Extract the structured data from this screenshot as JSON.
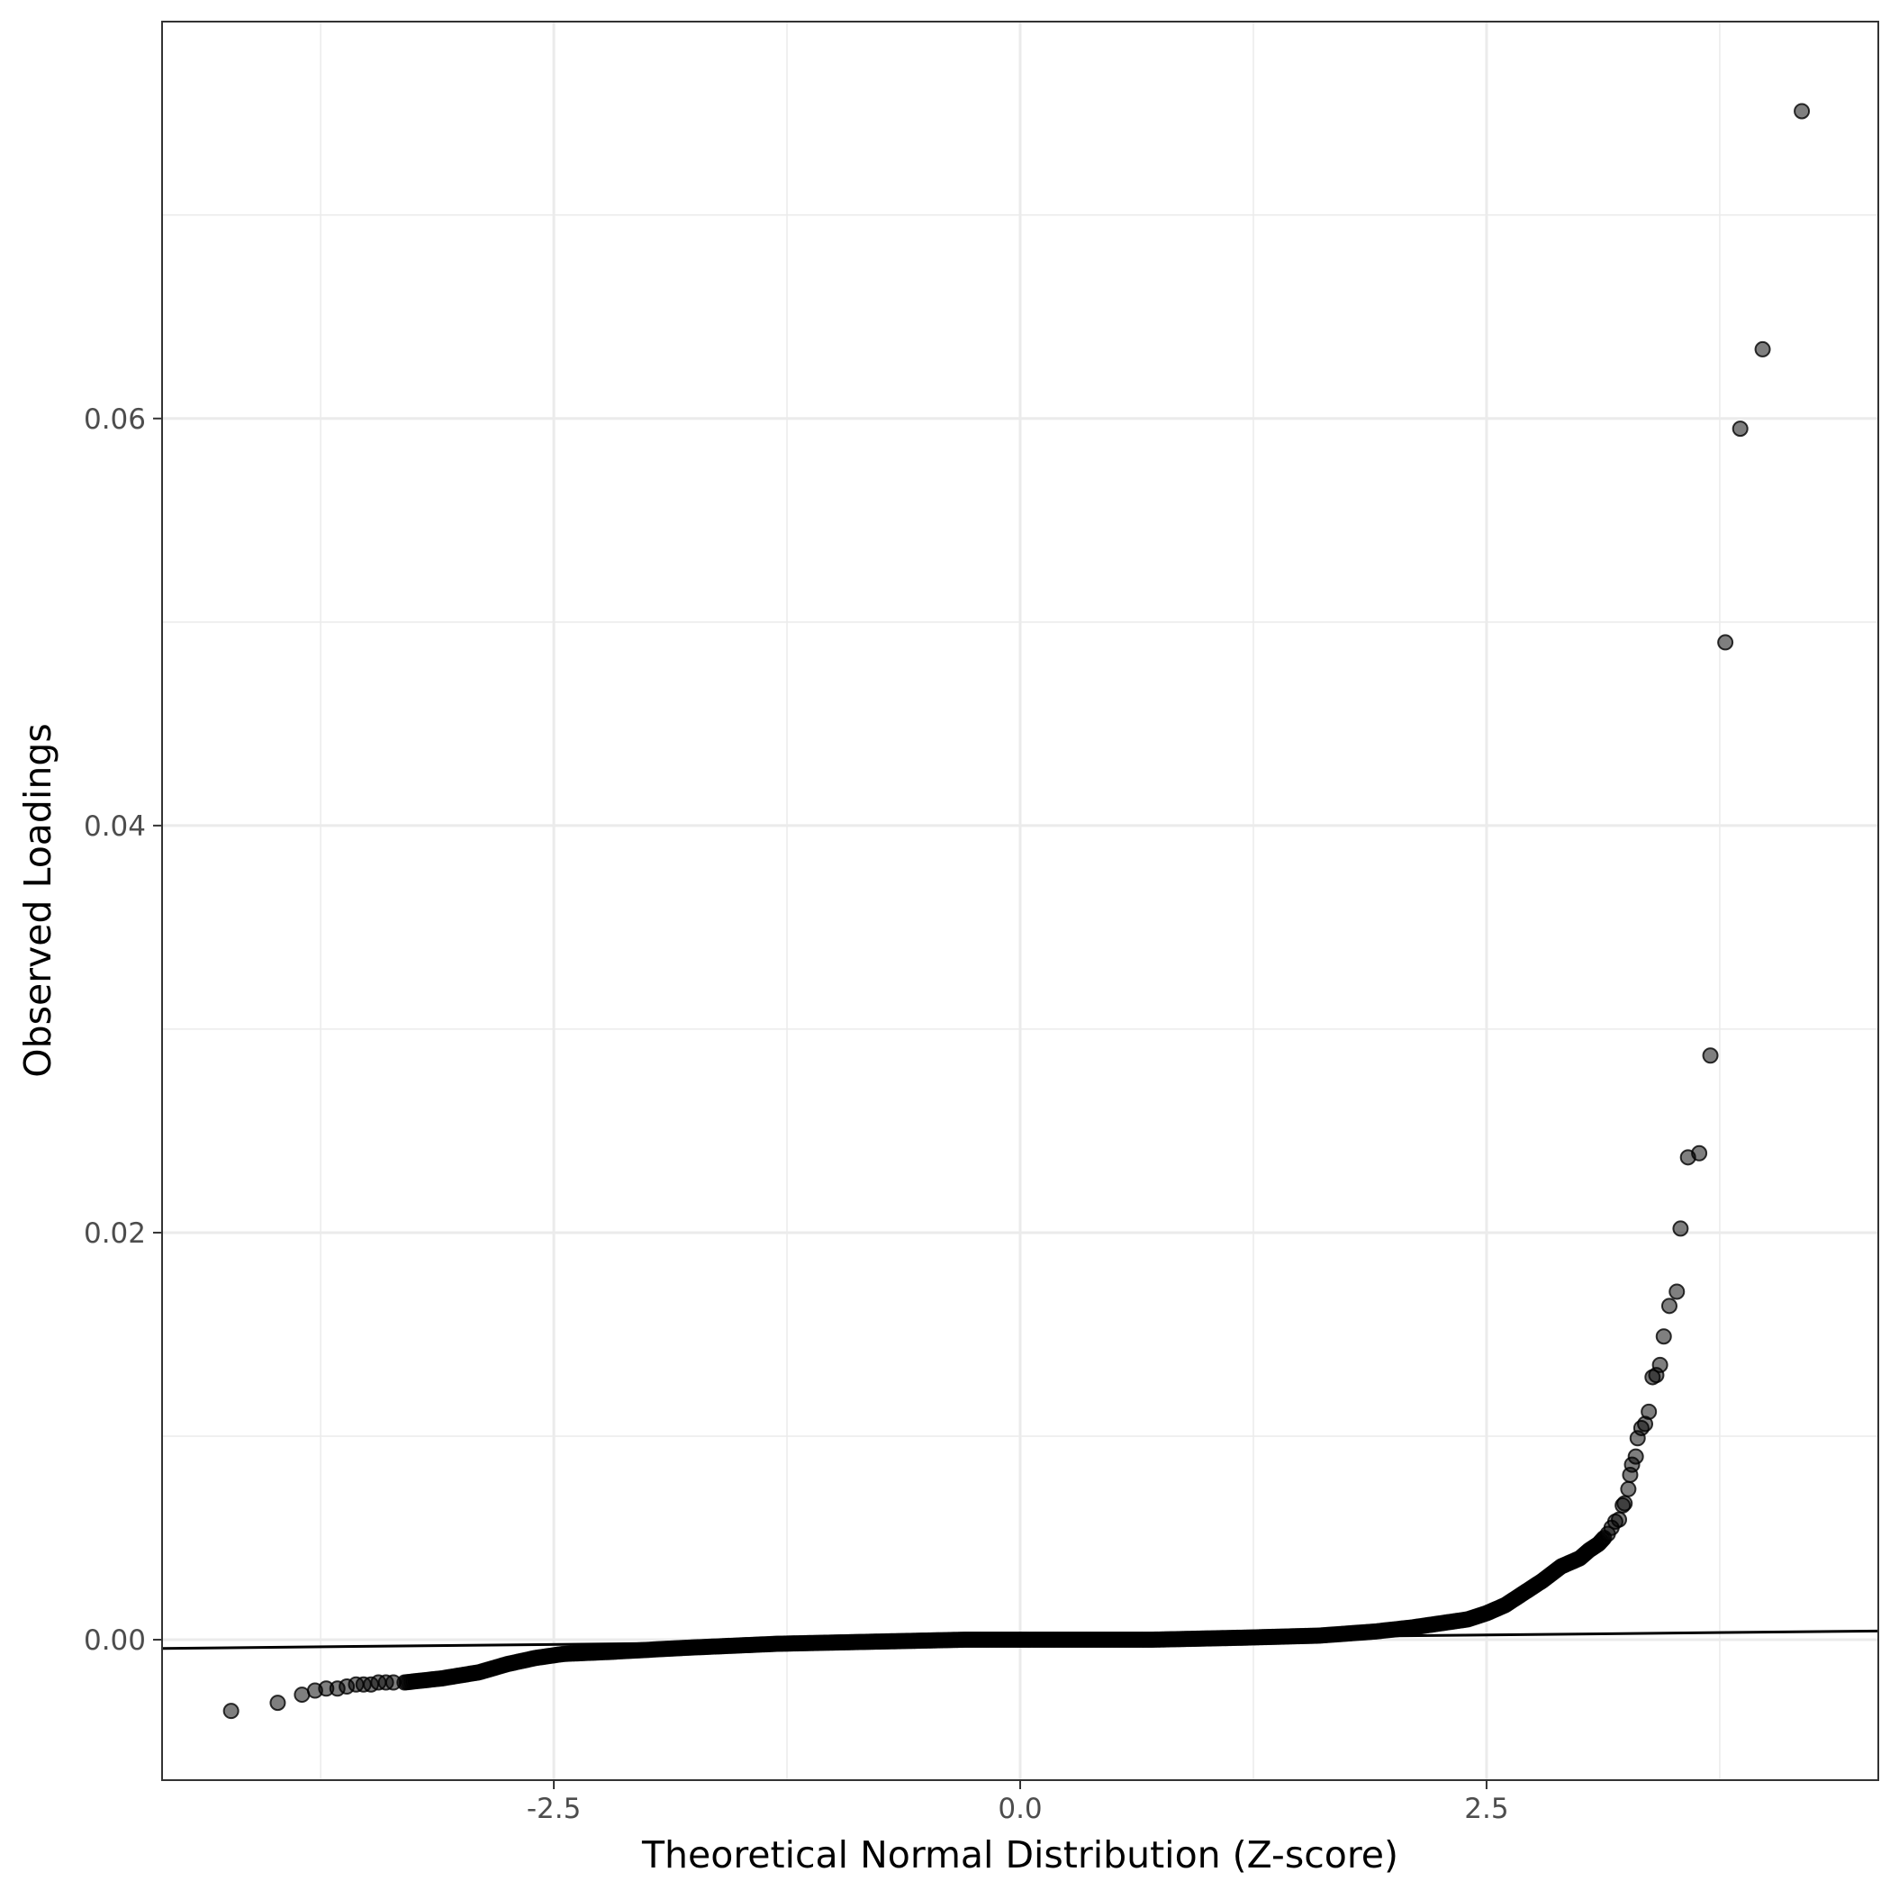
{
  "chart_data": {
    "type": "scatter",
    "xlabel": "Theoretical Normal Distribution (Z-score)",
    "ylabel": "Observed Loadings",
    "xlim": [
      -4.6,
      4.6
    ],
    "ylim": [
      -0.0069,
      0.0795
    ],
    "x_ticks": [
      -2.5,
      0.0,
      2.5
    ],
    "x_tick_labels": [
      "-2.5",
      "0.0",
      "2.5"
    ],
    "x_minor_ticks": [
      -3.75,
      -1.25,
      1.25,
      3.75
    ],
    "y_ticks": [
      0.0,
      0.02,
      0.04,
      0.06
    ],
    "y_tick_labels": [
      "0.00",
      "0.02",
      "0.04",
      "0.06"
    ],
    "y_minor_ticks": [
      0.01,
      0.03,
      0.05,
      0.07
    ],
    "grid": true,
    "legend": "none",
    "point_color": "#000000",
    "point_opacity": 0.5,
    "reference_line": {
      "slope": 9.33e-05,
      "intercept": 0.0,
      "color": "#000000"
    },
    "curve_points": {
      "x": [
        -3.3,
        -3.1,
        -2.9,
        -2.75,
        -2.6,
        -2.45,
        -2.2,
        -1.8,
        -1.3,
        -0.8,
        -0.3,
        0.2,
        0.7,
        1.2,
        1.6,
        1.9,
        2.1,
        2.25,
        2.4,
        2.5,
        2.6,
        2.7,
        2.8,
        2.9,
        2.95,
        3.0,
        3.05,
        3.1,
        3.13
      ],
      "y": [
        -0.0021,
        -0.0019,
        -0.0016,
        -0.0012,
        -0.0009,
        -0.0007,
        -0.0006,
        -0.0004,
        -0.0002,
        -0.0001,
        0.0,
        0.0,
        0.0,
        0.0001,
        0.0002,
        0.0004,
        0.0006,
        0.0008,
        0.001,
        0.0013,
        0.0017,
        0.0023,
        0.0029,
        0.0036,
        0.0038,
        0.004,
        0.0044,
        0.0047,
        0.005
      ]
    },
    "points": {
      "x": [
        -4.23,
        -3.98,
        -3.85,
        -3.78,
        -3.72,
        -3.66,
        -3.61,
        -3.56,
        -3.52,
        -3.48,
        -3.44,
        -3.4,
        -3.36,
        3.15,
        3.17,
        3.19,
        3.21,
        3.23,
        3.24,
        3.26,
        3.27,
        3.28,
        3.3,
        3.31,
        3.33,
        3.35,
        3.37,
        3.39,
        3.41,
        3.43,
        3.45,
        3.48,
        3.52,
        3.54,
        3.58,
        3.64,
        3.7,
        3.78,
        3.86,
        3.98,
        4.19
      ],
      "y": [
        -0.0035,
        -0.0031,
        -0.0027,
        -0.0025,
        -0.0024,
        -0.0024,
        -0.0023,
        -0.0022,
        -0.0022,
        -0.0022,
        -0.0021,
        -0.0021,
        -0.0021,
        0.0052,
        0.0055,
        0.0058,
        0.0059,
        0.0066,
        0.0067,
        0.0074,
        0.0081,
        0.0086,
        0.009,
        0.0099,
        0.0104,
        0.0106,
        0.0112,
        0.0129,
        0.013,
        0.0135,
        0.0149,
        0.0164,
        0.0171,
        0.0202,
        0.0237,
        0.0239,
        0.0287,
        0.049,
        0.0595,
        0.0634,
        0.0751
      ]
    }
  }
}
